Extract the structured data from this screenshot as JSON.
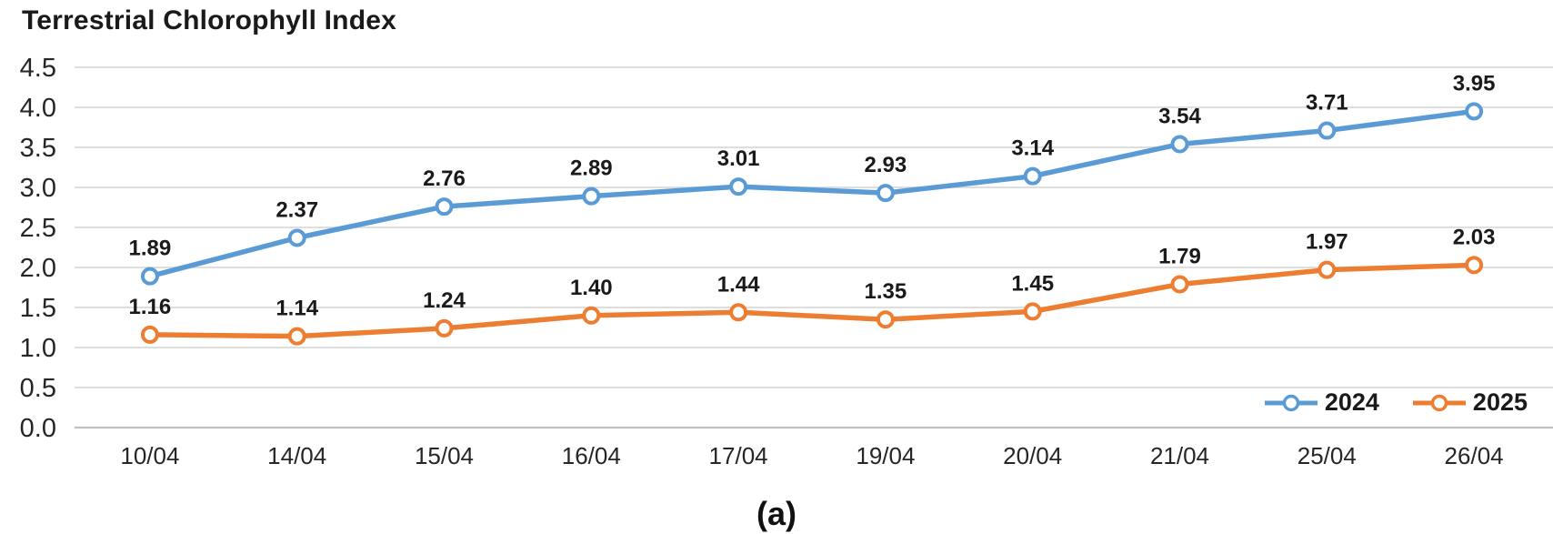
{
  "chart_data": {
    "type": "line",
    "title": "Terrestrial Chlorophyll Index",
    "caption": "(a)",
    "categories": [
      "10/04",
      "14/04",
      "15/04",
      "16/04",
      "17/04",
      "19/04",
      "20/04",
      "21/04",
      "25/04",
      "26/04"
    ],
    "series": [
      {
        "name": "2024",
        "color": "#5B9BD5",
        "values": [
          1.89,
          2.37,
          2.76,
          2.89,
          3.01,
          2.93,
          3.14,
          3.54,
          3.71,
          3.95
        ]
      },
      {
        "name": "2025",
        "color": "#ED7D31",
        "values": [
          1.16,
          1.14,
          1.24,
          1.4,
          1.44,
          1.35,
          1.45,
          1.79,
          1.97,
          2.03
        ]
      }
    ],
    "ylim": [
      0,
      4.5
    ],
    "ytick_step": 0.5,
    "yticks": [
      "0.0",
      "0.5",
      "1.0",
      "1.5",
      "2.0",
      "2.5",
      "3.0",
      "3.5",
      "4.0",
      "4.5"
    ],
    "grid": "horizontal",
    "legend_position": "bottom-right-inside",
    "data_labels": true,
    "gridline_color": "#D9D9D9",
    "axis_line_color": "#BFBFBF",
    "tick_color": "#262626",
    "data_label_color": "#1a1a1a"
  }
}
